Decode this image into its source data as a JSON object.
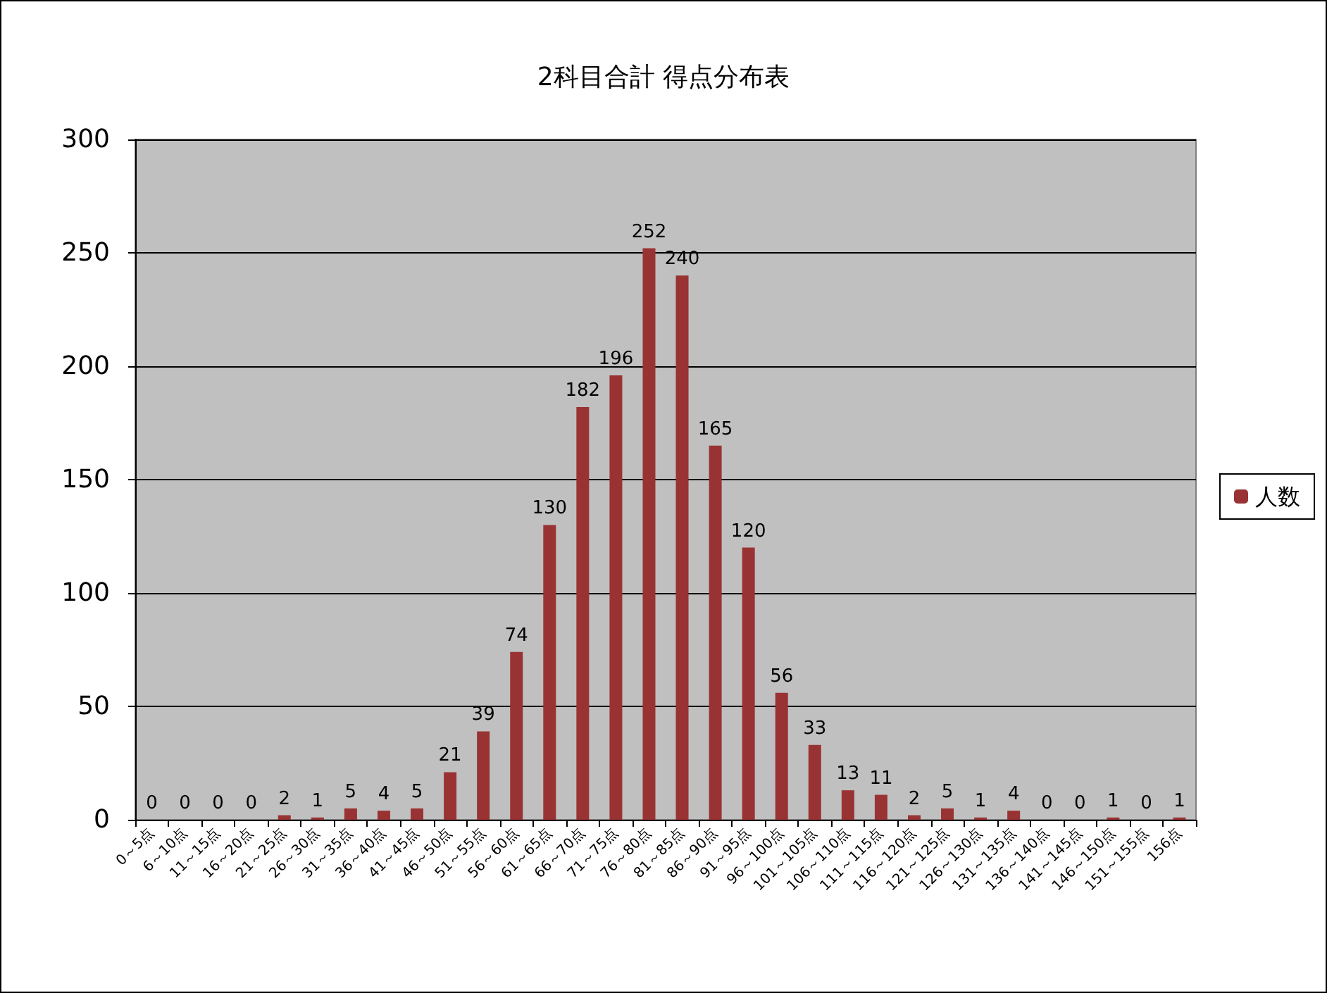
{
  "chart_data": {
    "type": "bar",
    "title": "2科目合計 得点分布表",
    "categories": [
      "0～5点",
      "6～10点",
      "11～15点",
      "16～20点",
      "21～25点",
      "26～30点",
      "31～35点",
      "36～40点",
      "41～45点",
      "46～50点",
      "51～55点",
      "56～60点",
      "61～65点",
      "66～70点",
      "71～75点",
      "76～80点",
      "81～85点",
      "86～90点",
      "91～95点",
      "96～100点",
      "101～105点",
      "106～110点",
      "111～115点",
      "116～120点",
      "121～125点",
      "126～130点",
      "131～135点",
      "136～140点",
      "141～145点",
      "146～150点",
      "151～155点",
      "156点"
    ],
    "series": [
      {
        "name": "人数",
        "color": "#993333",
        "values": [
          0,
          0,
          0,
          0,
          2,
          1,
          5,
          4,
          5,
          21,
          39,
          74,
          130,
          182,
          196,
          252,
          240,
          165,
          120,
          56,
          33,
          13,
          11,
          2,
          5,
          1,
          4,
          0,
          0,
          1,
          0,
          1
        ]
      }
    ],
    "ylim": [
      0,
      300
    ],
    "yticks": [
      0,
      50,
      100,
      150,
      200,
      250,
      300
    ],
    "grid": "y",
    "legend": "right",
    "data_labels": true
  }
}
